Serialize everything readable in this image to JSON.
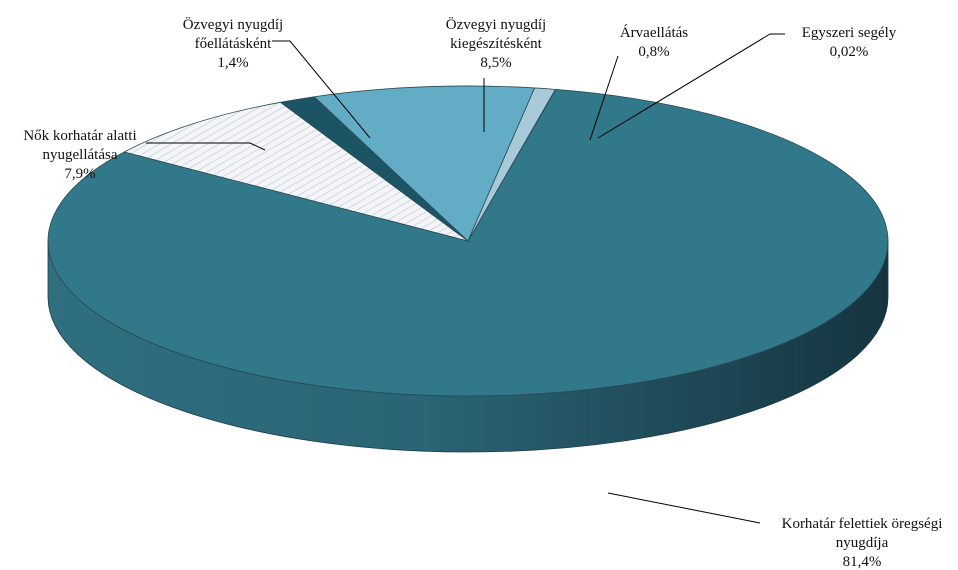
{
  "chart_data": {
    "type": "pie",
    "style": "3d",
    "title": "",
    "slices": [
      {
        "label": [
          "Korhatár felettiek öregségi",
          "nyugdíja"
        ],
        "value": 81.4,
        "value_label": "81,4%",
        "color": "#31788a"
      },
      {
        "label": [
          "Nők korhatár alatti",
          "nyugellátása"
        ],
        "value": 7.9,
        "value_label": "7,9%",
        "color": "#eef1f5",
        "pattern": "diagonal-hatch"
      },
      {
        "label": [
          "Özvegyi nyugdíj",
          "főellátásként"
        ],
        "value": 1.4,
        "value_label": "1,4%",
        "color": "#1b5565"
      },
      {
        "label": [
          "Özvegyi nyugdíj",
          "kiegészítésként"
        ],
        "value": 8.5,
        "value_label": "8,5%",
        "color": "#62adc5"
      },
      {
        "label": [
          "Árvaellátás"
        ],
        "value": 0.8,
        "value_label": "0,8%",
        "color": "#a8c9d8"
      },
      {
        "label": [
          "Egyszeri segély"
        ],
        "value": 0.02,
        "value_label": "0,02%",
        "color": "#c5dde8"
      }
    ]
  }
}
